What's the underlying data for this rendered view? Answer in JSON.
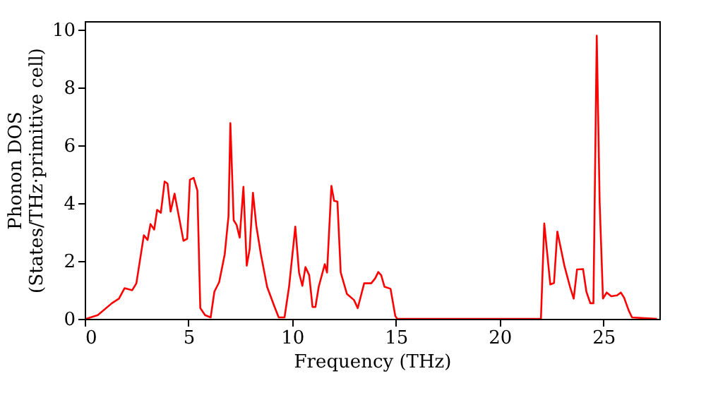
{
  "chart_data": {
    "type": "line",
    "xlabel": "Frequency (THz)",
    "ylabel": "Phonon DOS\n(States/THz·primitive cell)",
    "xlim": [
      0,
      27.7
    ],
    "ylim": [
      0,
      10.3
    ],
    "xticks": [
      0,
      5,
      10,
      15,
      20,
      25
    ],
    "yticks": [
      0,
      2,
      4,
      6,
      8,
      10
    ],
    "grid": false,
    "marker": "none",
    "line_style": "solid",
    "series": [
      {
        "color": "#ff0000",
        "x": [
          0.07,
          0.63,
          1.31,
          1.65,
          1.92,
          2.29,
          2.49,
          2.85,
          3.03,
          3.17,
          3.35,
          3.49,
          3.67,
          3.85,
          3.99,
          4.14,
          4.33,
          4.76,
          4.94,
          5.07,
          5.25,
          5.43,
          5.57,
          5.8,
          6.07,
          6.25,
          6.48,
          6.75,
          6.93,
          7.02,
          7.18,
          7.32,
          7.47,
          7.65,
          7.81,
          7.95,
          8.11,
          8.27,
          8.49,
          8.79,
          9.13,
          9.35,
          9.63,
          9.85,
          10.15,
          10.33,
          10.49,
          10.64,
          10.82,
          10.98,
          11.12,
          11.28,
          11.57,
          11.68,
          11.89,
          12.02,
          12.18,
          12.34,
          12.64,
          12.98,
          13.16,
          13.47,
          13.81,
          14.0,
          14.15,
          14.29,
          14.45,
          14.74,
          14.97,
          15.06,
          21.99,
          22.15,
          22.44,
          22.62,
          22.78,
          23.12,
          23.39,
          23.57,
          23.73,
          24.02,
          24.18,
          24.37,
          24.52,
          24.68,
          24.82,
          24.98,
          25.16,
          25.38,
          25.66,
          25.84,
          26.0,
          26.22,
          26.38,
          27.58
        ],
        "values": [
          0,
          0.13,
          0.54,
          0.7,
          1.06,
          0.99,
          1.23,
          2.89,
          2.73,
          3.28,
          3.09,
          3.77,
          3.67,
          4.75,
          4.68,
          3.71,
          4.33,
          2.7,
          2.77,
          4.81,
          4.88,
          4.44,
          0.37,
          0.13,
          0.05,
          0.94,
          1.27,
          2.24,
          3.55,
          6.77,
          3.41,
          3.25,
          2.81,
          4.57,
          1.84,
          2.41,
          4.36,
          3.22,
          2.24,
          1.11,
          0.45,
          0.05,
          0.05,
          1.11,
          3.19,
          1.6,
          1.14,
          1.79,
          1.51,
          0.41,
          0.41,
          1.11,
          1.89,
          1.6,
          4.6,
          4.08,
          4.06,
          1.6,
          0.86,
          0.65,
          0.37,
          1.23,
          1.23,
          1.4,
          1.62,
          1.51,
          1.11,
          1.04,
          0.1,
          0,
          0,
          3.3,
          1.19,
          1.24,
          3.02,
          1.84,
          1.11,
          0.7,
          1.71,
          1.72,
          0.94,
          0.54,
          0.54,
          9.8,
          4.03,
          0.7,
          0.91,
          0.78,
          0.81,
          0.91,
          0.73,
          0.29,
          0.05,
          0
        ]
      }
    ]
  }
}
